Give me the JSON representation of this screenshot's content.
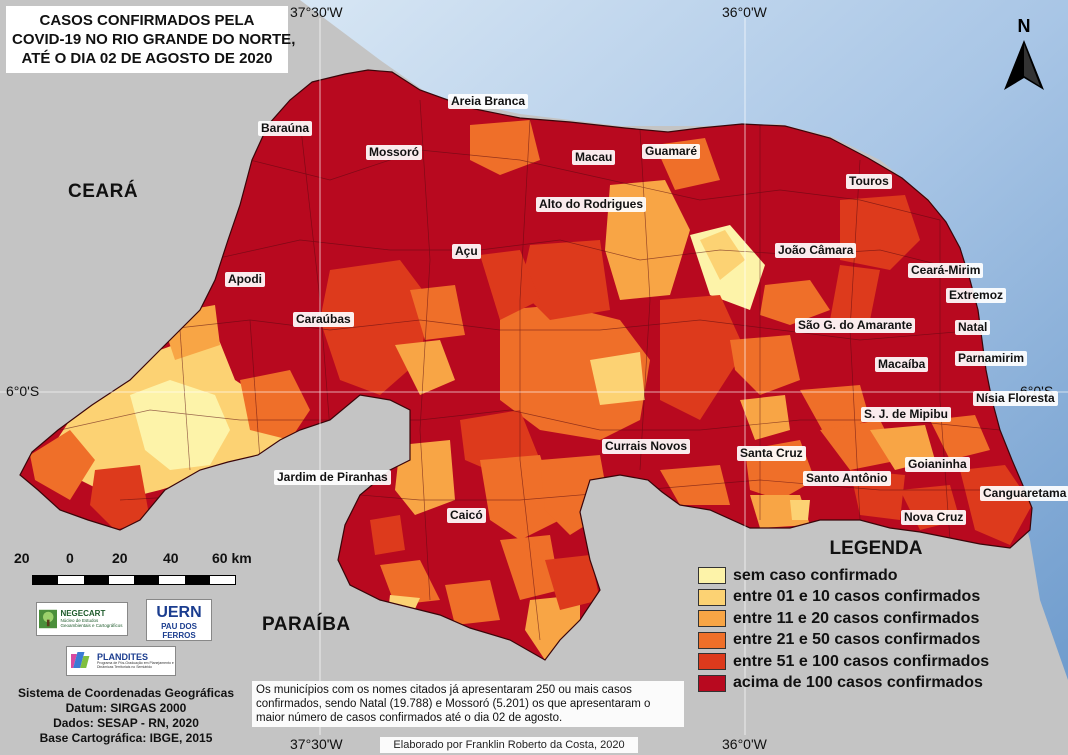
{
  "title": {
    "line1": "CASOS CONFIRMADOS PELA",
    "line2": "COVID-19 NO RIO GRANDE DO NORTE,",
    "line3": "ATÉ O DIA 02 DE AGOSTO DE 2020"
  },
  "coordinates": {
    "top_left": "37°30'W",
    "top_right": "36°0'W",
    "bottom_left": "37°30'W",
    "bottom_right": "36°0'W",
    "left_lat": "6°0'S",
    "right_lat": "6°0'S"
  },
  "neighbors": {
    "ceara": "CEARÁ",
    "paraiba": "PARAÍBA"
  },
  "north_arrow": {
    "letter": "N",
    "icon": "north-arrow-icon"
  },
  "cities": [
    "Areia Branca",
    "Baraúna",
    "Mossoró",
    "Macau",
    "Guamaré",
    "Touros",
    "Alto do Rodrigues",
    "Açu",
    "João Câmara",
    "Apodi",
    "Ceará-Mirim",
    "Extremoz",
    "Caraúbas",
    "São G. do Amarante",
    "Natal",
    "Parnamirim",
    "Macaíba",
    "Nísia Floresta",
    "S. J. de Mipibu",
    "Currais Novos",
    "Santa Cruz",
    "Goianinha",
    "Santo Antônio",
    "Jardim de Piranhas",
    "Canguaretama",
    "Caicó",
    "Nova Cruz"
  ],
  "legend": {
    "title": "LEGENDA",
    "items": [
      {
        "label": "sem caso confirmado",
        "color": "#fdf3a9"
      },
      {
        "label": "entre 01 e 10 casos confirmados",
        "color": "#fcd273"
      },
      {
        "label": "entre 11 e 20 casos confirmados",
        "color": "#f8a545"
      },
      {
        "label": "entre 21 e 50 casos confirmados",
        "color": "#ef6f29"
      },
      {
        "label": "entre 51 e 100 casos confirmados",
        "color": "#dd3a1c"
      },
      {
        "label": "acima de 100 casos confirmados",
        "color": "#b8091f"
      }
    ]
  },
  "scale": {
    "labels": [
      "20",
      "0",
      "20",
      "40",
      "60 km"
    ]
  },
  "logos": {
    "negecart": "NEGECART",
    "negecart_sub": "Núcleo de Estudos Geoambientais e Cartográficos",
    "uern": "UERN",
    "uern_sub": "PAU DOS FERROS",
    "plandites": "PLANDITES",
    "plandites_sub": "Programa de Pós-Graduação em Planejamento e Dinâmicas Territoriais no Semiárido"
  },
  "metadata": {
    "line1": "Sistema de Coordenadas Geográficas",
    "line2": "Datum: SIRGAS 2000",
    "line3": "Dados: SESAP - RN, 2020",
    "line4": "Base Cartográfica: IBGE, 2015"
  },
  "note": "Os municípios com os nomes citados já apresentaram 250 ou mais casos confirmados, sendo Natal (19.788) e Mossoró (5.201) os que apresentaram o maior número de casos confirmados até o dia 02 de agosto.",
  "credit": "Elaborado por Franklin Roberto da Costa, 2020",
  "colors": {
    "ocean": "#9cc0e6",
    "neighbor_land": "#c4c4c4",
    "graticule": "#ffffff"
  }
}
